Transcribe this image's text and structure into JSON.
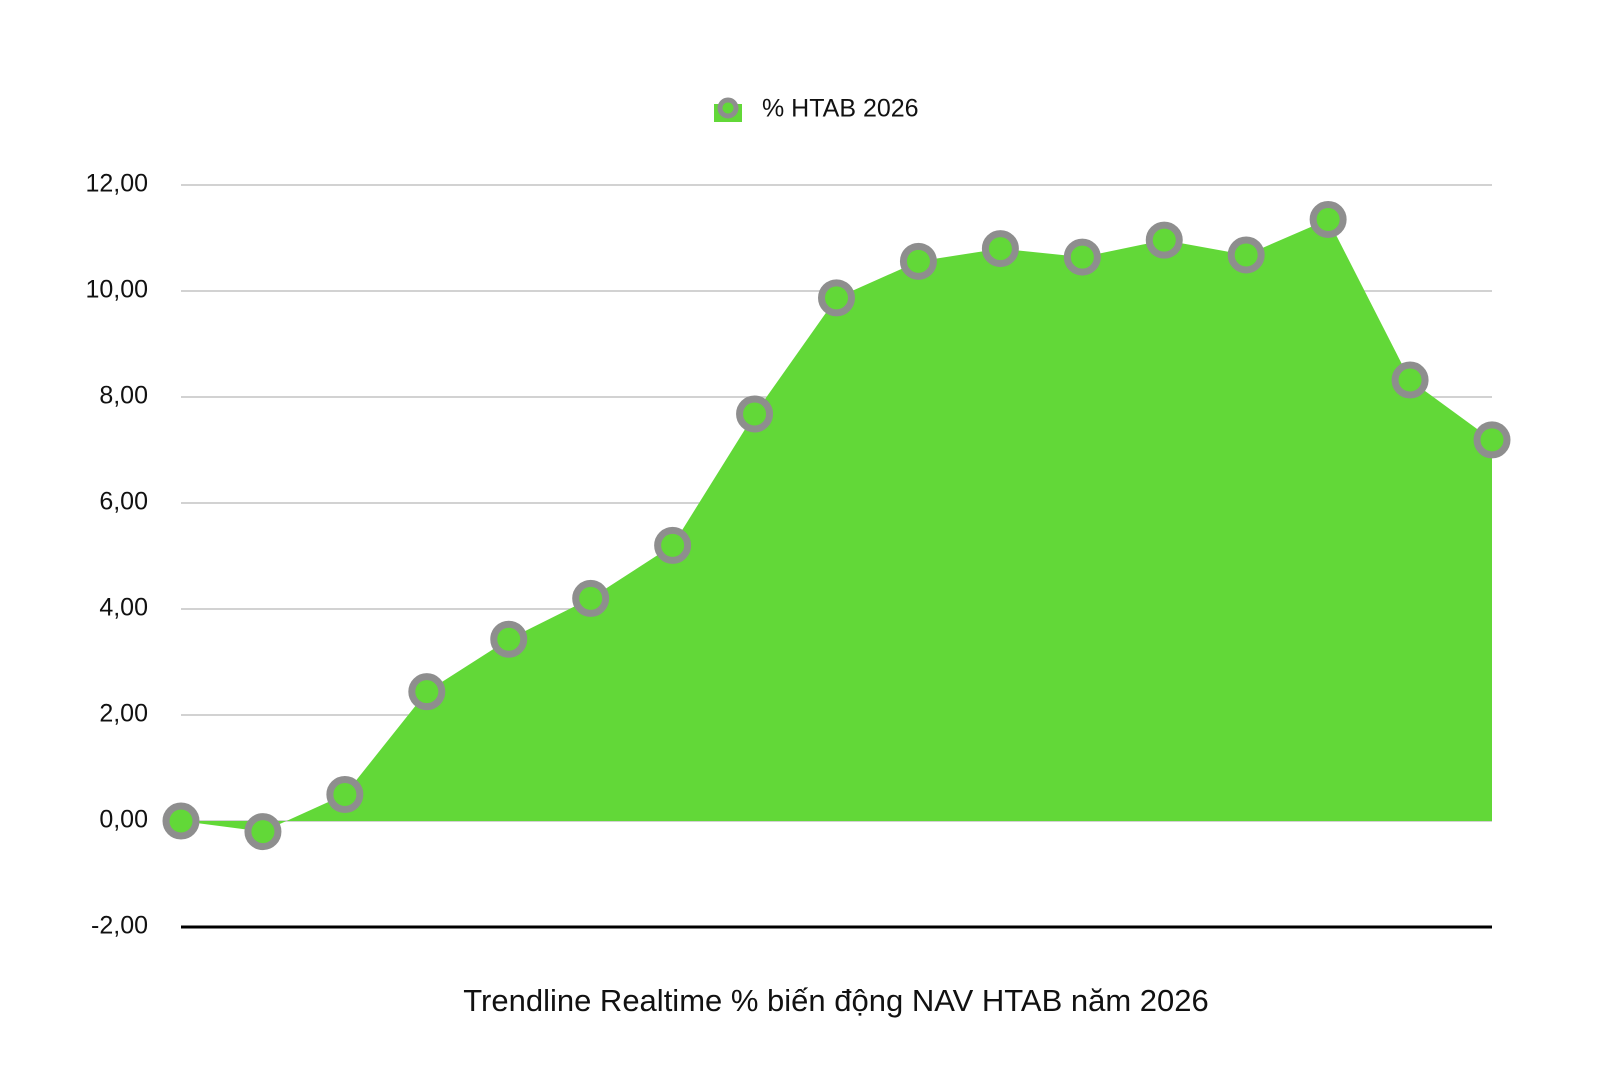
{
  "chart_data": {
    "type": "area",
    "legend": "% HTAB 2026",
    "x_label": "Trendline Realtime % biến động NAV HTAB năm 2026",
    "categories": [
      null,
      null,
      null,
      null,
      null,
      null,
      null,
      null,
      null,
      null,
      null,
      null,
      null,
      null,
      null,
      null,
      null
    ],
    "series": [
      {
        "name": "% HTAB 2026",
        "color": "#62d838",
        "marker_color": "#8e8e8e",
        "values": [
          0,
          -0.2,
          0.5,
          2.44,
          3.43,
          4.2,
          5.2,
          7.68,
          9.87,
          10.56,
          10.8,
          10.64,
          10.96,
          10.68,
          11.35,
          8.32,
          7.19
        ]
      }
    ],
    "ylim": [
      -2,
      12
    ],
    "yticks": [
      {
        "value": -2,
        "label": "-2,00"
      },
      {
        "value": 0,
        "label": "0,00"
      },
      {
        "value": 2,
        "label": "2,00"
      },
      {
        "value": 4,
        "label": "4,00"
      },
      {
        "value": 6,
        "label": "6,00"
      },
      {
        "value": 8,
        "label": "8,00"
      },
      {
        "value": 10,
        "label": "10,00"
      },
      {
        "value": 12,
        "label": "12,00"
      }
    ],
    "grid": true,
    "legend_position": "top"
  }
}
